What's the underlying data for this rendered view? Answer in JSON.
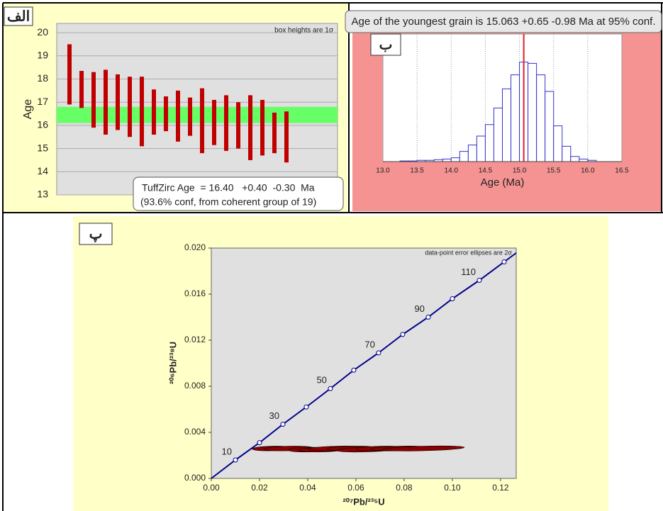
{
  "chart_data": [
    {
      "type": "range-bar",
      "label": "الف",
      "ylabel": "Age",
      "note": "box heights are 1σ",
      "annotation": [
        "TuffZirc Age  = 16.40   +0.40  -0.30  Ma",
        "(93.6% conf, from coherent group of 19)"
      ],
      "low": [
        16.9,
        16.75,
        15.9,
        15.6,
        15.8,
        15.5,
        15.1,
        15.6,
        15.75,
        15.3,
        15.55,
        14.8,
        15.15,
        14.9,
        15.0,
        14.5,
        14.7,
        14.8,
        14.4
      ],
      "high": [
        19.5,
        18.35,
        18.3,
        18.4,
        18.2,
        18.1,
        18.1,
        17.55,
        17.25,
        17.5,
        17.2,
        17.6,
        17.1,
        17.3,
        17.0,
        17.3,
        17.1,
        16.55,
        16.6
      ],
      "band": [
        16.1,
        16.8
      ],
      "bar_color": "#c00000",
      "band_color": "#66ff66",
      "ylim": [
        13,
        20.4
      ],
      "yticks": [
        13,
        14,
        15,
        16,
        17,
        18,
        19,
        20
      ],
      "grid": true
    },
    {
      "type": "histogram",
      "label": "ب",
      "title": "Age of the youngest grain is 15.063 +0.65 -0.98 Ma at 95% conf.",
      "xlabel": "Age (Ma)",
      "bins": [
        13.25,
        13.375,
        13.5,
        13.625,
        13.75,
        13.875,
        14.0,
        14.125,
        14.25,
        14.375,
        14.5,
        14.625,
        14.75,
        14.875,
        15.0,
        15.125,
        15.25,
        15.375,
        15.5,
        15.625,
        15.75,
        15.875,
        16.0,
        16.125
      ],
      "counts": [
        0.5,
        0.5,
        1,
        1,
        1.5,
        2,
        3,
        8,
        13,
        20,
        29,
        42,
        57,
        68,
        78,
        77,
        68,
        55,
        28,
        12,
        4,
        2,
        1
      ],
      "ylim": [
        0,
        100
      ],
      "xlim": [
        13,
        16.5
      ],
      "xticks": [
        {
          "value": 13,
          "label": "13.0"
        },
        {
          "value": 13.5,
          "label": "13.5"
        },
        {
          "value": 14,
          "label": "14.0"
        },
        {
          "value": 14.5,
          "label": "14.5"
        },
        {
          "value": 15,
          "label": "15.0"
        },
        {
          "value": 15.5,
          "label": "15.5"
        },
        {
          "value": 16,
          "label": "16.0"
        },
        {
          "value": 16.5,
          "label": "16.5"
        }
      ],
      "marker": 15.063,
      "marker_color": "#e02020",
      "bar_color": "#3333cc",
      "grid": true
    },
    {
      "type": "concordia",
      "label": "پ",
      "note": "data-point error ellipses are 2σ",
      "xlabel": "²⁰⁷Pb/²³⁵U",
      "ylabel": "²⁰⁶Pb/²³⁸U",
      "points": {
        "x": [
          0.01,
          0.02,
          0.0297,
          0.0394,
          0.0494,
          0.0591,
          0.0694,
          0.0794,
          0.09,
          0.1,
          0.1112,
          0.1215
        ],
        "y": [
          0.0016,
          0.0031,
          0.0047,
          0.0062,
          0.0078,
          0.0094,
          0.0109,
          0.0125,
          0.014,
          0.0156,
          0.0172,
          0.0188
        ]
      },
      "point_labels": [
        "10",
        null,
        "30",
        null,
        "50",
        null,
        "70",
        null,
        "90",
        null,
        "110",
        null
      ],
      "ellipses": {
        "x": [
          0.025,
          0.032,
          0.04,
          0.046,
          0.052,
          0.058,
          0.064,
          0.07,
          0.078,
          0.088
        ],
        "y": [
          0.0026,
          0.0026,
          0.0025,
          0.0025,
          0.0026,
          0.0026,
          0.0025,
          0.0026,
          0.0026,
          0.0026
        ],
        "x_err": [
          0.008,
          0.01,
          0.008,
          0.01,
          0.012,
          0.01,
          0.012,
          0.01,
          0.012,
          0.017
        ],
        "y_err": [
          0.0002,
          0.0002,
          0.0002,
          0.0002,
          0.0002,
          0.0002,
          0.0002,
          0.0002,
          0.0002,
          0.0002
        ]
      },
      "line_color": "#00008b",
      "ellipse_color": "#8b0000",
      "xlim": [
        0,
        0.1265
      ],
      "ylim": [
        0,
        0.02
      ],
      "xticks": [
        {
          "value": 0,
          "label": "0.00"
        },
        {
          "value": 0.02,
          "label": "0.02"
        },
        {
          "value": 0.04,
          "label": "0.04"
        },
        {
          "value": 0.06,
          "label": "0.06"
        },
        {
          "value": 0.08,
          "label": "0.08"
        },
        {
          "value": 0.1,
          "label": "0.10"
        },
        {
          "value": 0.12,
          "label": "0.12"
        }
      ],
      "yticks": [
        {
          "value": 0,
          "label": "0.000"
        },
        {
          "value": 0.004,
          "label": "0.004"
        },
        {
          "value": 0.008,
          "label": "0.008"
        },
        {
          "value": 0.012,
          "label": "0.012"
        },
        {
          "value": 0.016,
          "label": "0.016"
        },
        {
          "value": 0.02,
          "label": "0.020"
        }
      ]
    }
  ]
}
